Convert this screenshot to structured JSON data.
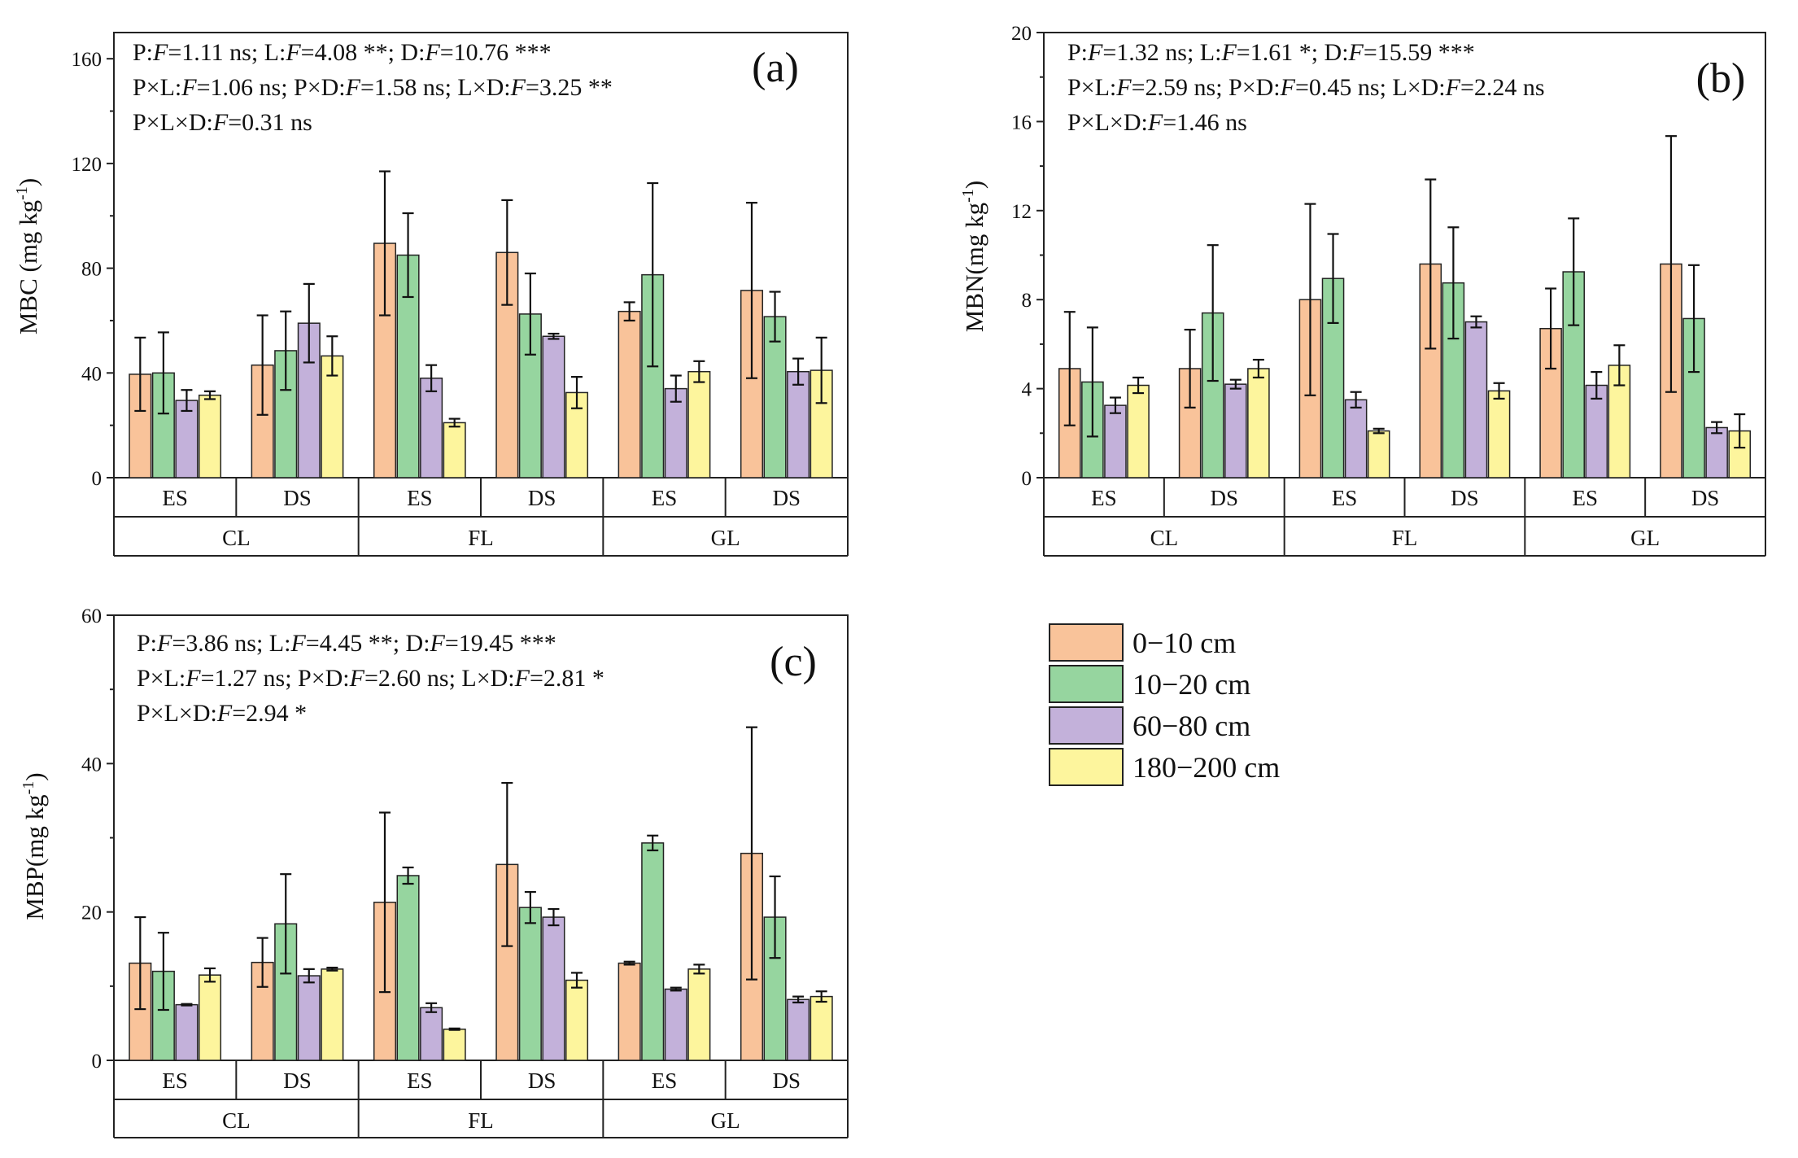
{
  "legend": [
    {
      "label": "0−10 cm",
      "color": "#F9C39A"
    },
    {
      "label": "10−20 cm",
      "color": "#96D59F"
    },
    {
      "label": "60−80 cm",
      "color": "#C3B1DA"
    },
    {
      "label": "180−200 cm",
      "color": "#FDF59D"
    }
  ],
  "chart_data": [
    {
      "id": "a",
      "type": "bar",
      "panel_label": "(a)",
      "ylabel_main": "MBC (mg kg",
      "ylabel_sup": "-1",
      "ylabel_end": ")",
      "ylim": [
        0,
        170
      ],
      "yticks": [
        0,
        40,
        80,
        120,
        160
      ],
      "xticks_inner": [
        "ES",
        "DS",
        "ES",
        "DS",
        "ES",
        "DS"
      ],
      "xticks_outer": [
        "CL",
        "FL",
        "GL"
      ],
      "stats": [
        [
          [
            "P:",
            false
          ],
          [
            "F",
            true
          ],
          [
            "=1.11 ns; L:",
            false
          ],
          [
            "F",
            true
          ],
          [
            "=4.08 **; D:",
            false
          ],
          [
            "F",
            true
          ],
          [
            "=10.76 ***",
            false
          ]
        ],
        [
          [
            "P×L:",
            false
          ],
          [
            "F",
            true
          ],
          [
            "=1.06 ns; P×D:",
            false
          ],
          [
            "F",
            true
          ],
          [
            "=1.58 ns; L×D:",
            false
          ],
          [
            "F",
            true
          ],
          [
            "=3.25 **",
            false
          ]
        ],
        [
          [
            "P×L×D:",
            false
          ],
          [
            "F",
            true
          ],
          [
            "=0.31 ns",
            false
          ]
        ]
      ],
      "series": [
        {
          "name": "0−10 cm",
          "values": [
            39.5,
            43,
            89.5,
            86,
            63.5,
            71.5
          ],
          "errors": [
            14,
            19,
            27.5,
            20,
            3.5,
            33.5
          ]
        },
        {
          "name": "10−20 cm",
          "values": [
            40,
            48.5,
            85,
            62.5,
            77.5,
            61.5
          ],
          "errors": [
            15.5,
            15,
            16,
            15.5,
            35,
            9.5
          ]
        },
        {
          "name": "60−80 cm",
          "values": [
            29.5,
            59,
            38,
            54,
            34,
            40.5
          ],
          "errors": [
            4,
            15,
            5,
            1,
            5,
            5
          ]
        },
        {
          "name": "180−200 cm",
          "values": [
            31.5,
            46.5,
            21,
            32.5,
            40.5,
            41
          ],
          "errors": [
            1.5,
            7.5,
            1.5,
            6,
            4,
            12.5
          ]
        }
      ]
    },
    {
      "id": "b",
      "type": "bar",
      "panel_label": "(b)",
      "ylabel_main": "MBN(mg kg",
      "ylabel_sup": "-1",
      "ylabel_end": ")",
      "ylim": [
        0,
        20
      ],
      "yticks": [
        0,
        4,
        8,
        12,
        16,
        20
      ],
      "xticks_inner": [
        "ES",
        "DS",
        "ES",
        "DS",
        "ES",
        "DS"
      ],
      "xticks_outer": [
        "CL",
        "FL",
        "GL"
      ],
      "stats": [
        [
          [
            "P:",
            false
          ],
          [
            "F",
            true
          ],
          [
            "=1.32 ns; L:",
            false
          ],
          [
            "F",
            true
          ],
          [
            "=1.61 *; D:",
            false
          ],
          [
            "F",
            true
          ],
          [
            "=15.59 ***",
            false
          ]
        ],
        [
          [
            "P×L:",
            false
          ],
          [
            "F",
            true
          ],
          [
            "=2.59 ns; P×D:",
            false
          ],
          [
            "F",
            true
          ],
          [
            "=0.45 ns; L×D:",
            false
          ],
          [
            "F",
            true
          ],
          [
            "=2.24 ns",
            false
          ]
        ],
        [
          [
            "P×L×D:",
            false
          ],
          [
            "F",
            true
          ],
          [
            "=1.46 ns",
            false
          ]
        ]
      ],
      "series": [
        {
          "name": "0−10 cm",
          "values": [
            4.9,
            4.9,
            8.0,
            9.6,
            6.7,
            9.6
          ],
          "errors": [
            2.55,
            1.75,
            4.3,
            3.8,
            1.8,
            5.75
          ]
        },
        {
          "name": "10−20 cm",
          "values": [
            4.3,
            7.4,
            8.95,
            8.75,
            9.25,
            7.15
          ],
          "errors": [
            2.45,
            3.05,
            2.0,
            2.5,
            2.4,
            2.4
          ]
        },
        {
          "name": "60−80 cm",
          "values": [
            3.25,
            4.2,
            3.5,
            7.0,
            4.15,
            2.25
          ],
          "errors": [
            0.35,
            0.2,
            0.35,
            0.25,
            0.6,
            0.25
          ]
        },
        {
          "name": "180−200 cm",
          "values": [
            4.15,
            4.9,
            2.1,
            3.9,
            5.05,
            2.1
          ],
          "errors": [
            0.35,
            0.4,
            0.1,
            0.35,
            0.9,
            0.75
          ]
        }
      ]
    },
    {
      "id": "c",
      "type": "bar",
      "panel_label": "(c)",
      "ylabel_main": "MBP(mg kg",
      "ylabel_sup": "-1",
      "ylabel_end": ")",
      "ylim": [
        0,
        60
      ],
      "yticks": [
        0,
        20,
        40,
        60
      ],
      "xticks_inner": [
        "ES",
        "DS",
        "ES",
        "DS",
        "ES",
        "DS"
      ],
      "xticks_outer": [
        "CL",
        "FL",
        "GL"
      ],
      "stats": [
        [
          [
            "P:",
            false
          ],
          [
            "F",
            true
          ],
          [
            "=3.86 ns; L:",
            false
          ],
          [
            "F",
            true
          ],
          [
            "=4.45 **; D:",
            false
          ],
          [
            "F",
            true
          ],
          [
            "=19.45 ***",
            false
          ]
        ],
        [
          [
            "P×L:",
            false
          ],
          [
            "F",
            true
          ],
          [
            "=1.27 ns; P×D:",
            false
          ],
          [
            "F",
            true
          ],
          [
            "=2.60 ns; L×D:",
            false
          ],
          [
            "F",
            true
          ],
          [
            "=2.81 *",
            false
          ]
        ],
        [
          [
            "P×L×D:",
            false
          ],
          [
            "F",
            true
          ],
          [
            "=2.94 *",
            false
          ]
        ]
      ],
      "series": [
        {
          "name": "0−10 cm",
          "values": [
            13.1,
            13.2,
            21.3,
            26.4,
            13.1,
            27.9
          ],
          "errors": [
            6.2,
            3.3,
            12.1,
            11,
            0.2,
            17
          ]
        },
        {
          "name": "10−20 cm",
          "values": [
            12.0,
            18.4,
            24.9,
            20.6,
            29.3,
            19.3
          ],
          "errors": [
            5.2,
            6.7,
            1.1,
            2.1,
            1.0,
            5.5
          ]
        },
        {
          "name": "60−80 cm",
          "values": [
            7.5,
            11.4,
            7.1,
            19.3,
            9.6,
            8.2
          ],
          "errors": [
            0.1,
            0.9,
            0.6,
            1.1,
            0.2,
            0.4
          ]
        },
        {
          "name": "180−200 cm",
          "values": [
            11.5,
            12.3,
            4.2,
            10.8,
            12.3,
            8.6
          ],
          "errors": [
            0.9,
            0.2,
            0.1,
            1.0,
            0.6,
            0.7
          ]
        }
      ]
    }
  ]
}
